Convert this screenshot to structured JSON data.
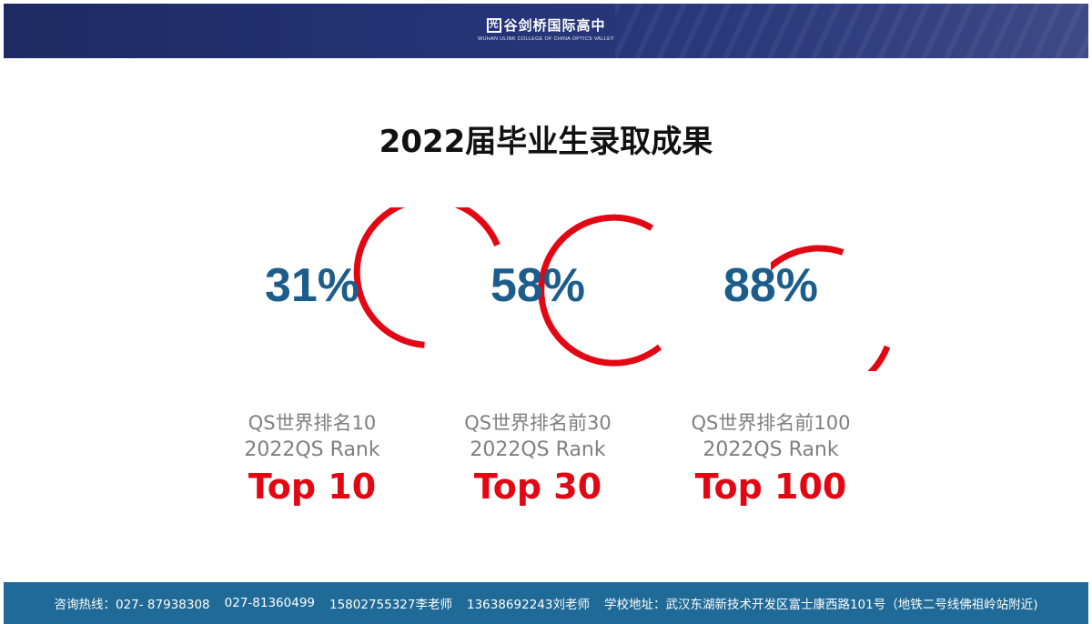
{
  "header": {
    "logo_mark": "光",
    "logo_title": "谷剑桥国际高中",
    "logo_subtitle": "WUHAN ULINK COLLEGE OF CHINA OPTICS VALLEY"
  },
  "title": "2022届毕业生录取成果",
  "colors": {
    "ring": "#e30613",
    "percent": "#1c5d8c",
    "label": "#7f7f7f",
    "header": "#243476",
    "footer": "#1f6a96"
  },
  "stats": [
    {
      "percent_text": "31%",
      "label_cn": "QS世界排名10",
      "label_en": "2022QS Rank",
      "top": "Top 10"
    },
    {
      "percent_text": "58%",
      "label_cn": "QS世界排名前30",
      "label_en": "2022QS Rank",
      "top": "Top 30"
    },
    {
      "percent_text": "88%",
      "label_cn": "QS世界排名前100",
      "label_en": "2022QS Rank",
      "top": "Top 100"
    }
  ],
  "footer": {
    "hotline_label": "咨询热线：027- 87938308",
    "phone2": "027-81360499",
    "contact1": "15802755327李老师",
    "contact2": "13638692243刘老师",
    "address": "学校地址：武汉东湖新技术开发区富士康西路101号（地铁二号线佛祖岭站附近)"
  }
}
